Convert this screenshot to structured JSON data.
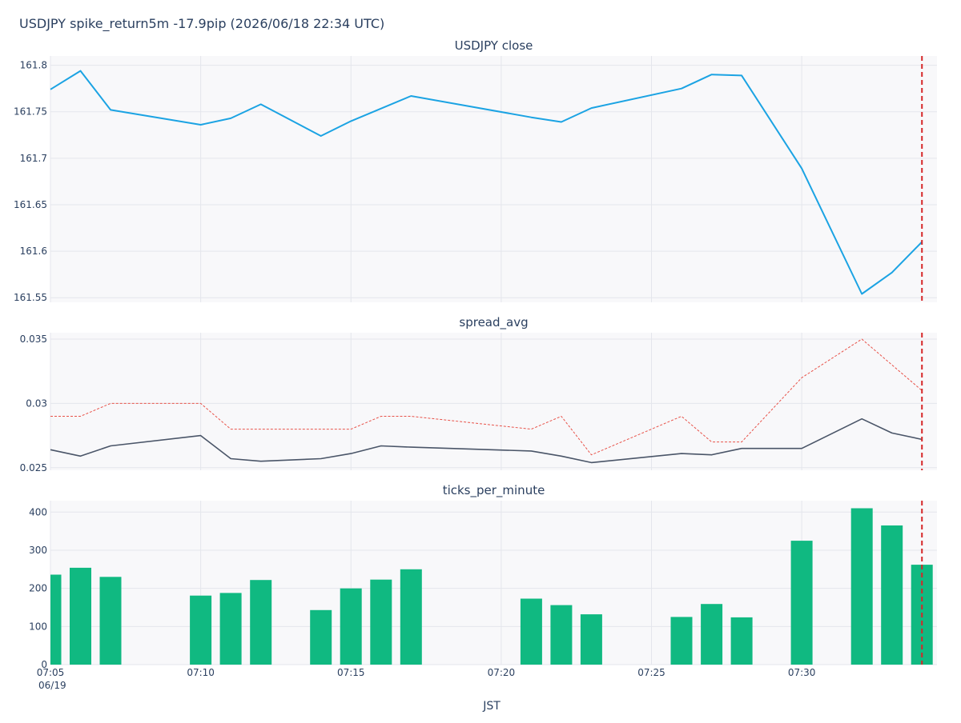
{
  "title": "USDJPY spike_return5m -17.9pip (2026/06/18 22:34 UTC)",
  "xaxis": {
    "label": "JST",
    "date_label": "06/19",
    "range": [
      "07:05",
      "07:34.5"
    ],
    "ticks": [
      "07:05",
      "07:10",
      "07:15",
      "07:20",
      "07:25",
      "07:30"
    ]
  },
  "event_marker": {
    "time": "07:34",
    "color": "#d62728",
    "style": "dashed"
  },
  "colors": {
    "close": "#1ba3e3",
    "spread": "#4a5568",
    "spread_max": "#e8534a",
    "ticks": "#10b981",
    "plot_bg": "#f8f8fa",
    "grid": "#e4e6ec",
    "text": "#2a3f5f"
  },
  "chart_data": [
    {
      "type": "line",
      "title": "USDJPY close",
      "ylim": [
        161.545,
        161.81
      ],
      "yticks": [
        {
          "value": 161.55,
          "label": "161.55"
        },
        {
          "value": 161.6,
          "label": "161.6"
        },
        {
          "value": 161.65,
          "label": "161.65"
        },
        {
          "value": 161.7,
          "label": "161.7"
        },
        {
          "value": 161.75,
          "label": "161.75"
        },
        {
          "value": 161.8,
          "label": "161.8"
        }
      ],
      "x": [
        "07:05",
        "07:06",
        "07:07",
        "07:10",
        "07:11",
        "07:12",
        "07:14",
        "07:15",
        "07:17",
        "07:21",
        "07:22",
        "07:23",
        "07:26",
        "07:27",
        "07:28",
        "07:30",
        "07:32",
        "07:33",
        "07:34"
      ],
      "series": [
        {
          "values": [
            161.774,
            161.794,
            161.752,
            161.736,
            161.743,
            161.758,
            161.724,
            161.74,
            161.767,
            161.744,
            161.739,
            161.754,
            161.775,
            161.79,
            161.789,
            161.689,
            161.554,
            161.577,
            161.61
          ]
        }
      ]
    },
    {
      "type": "line",
      "title": "spread_avg",
      "ylim": [
        0.0248,
        0.0355
      ],
      "yticks": [
        {
          "value": 0.025,
          "label": "0.025"
        },
        {
          "value": 0.03,
          "label": "0.03"
        },
        {
          "value": 0.035,
          "label": "0.035"
        }
      ],
      "x": [
        "07:05",
        "07:06",
        "07:07",
        "07:10",
        "07:11",
        "07:12",
        "07:14",
        "07:15",
        "07:16",
        "07:17",
        "07:21",
        "07:22",
        "07:23",
        "07:26",
        "07:27",
        "07:28",
        "07:30",
        "07:32",
        "07:33",
        "07:34"
      ],
      "series": [
        {
          "values": [
            0.0264,
            0.0259,
            0.0267,
            0.0275,
            0.0257,
            0.0255,
            0.0257,
            0.0261,
            0.0267,
            0.0266,
            0.0263,
            0.0259,
            0.0254,
            0.0261,
            0.026,
            0.0265,
            0.0265,
            0.0288,
            0.0277,
            0.0272
          ]
        },
        {
          "values": [
            0.029,
            0.029,
            0.03,
            0.03,
            0.028,
            0.028,
            0.028,
            0.028,
            0.029,
            0.029,
            0.028,
            0.029,
            0.026,
            0.029,
            0.027,
            0.027,
            0.032,
            0.035,
            0.033,
            0.031
          ]
        }
      ]
    },
    {
      "type": "bar",
      "title": "ticks_per_minute",
      "ylim": [
        0,
        430
      ],
      "yticks": [
        {
          "value": 0,
          "label": "0"
        },
        {
          "value": 100,
          "label": "100"
        },
        {
          "value": 200,
          "label": "200"
        },
        {
          "value": 300,
          "label": "300"
        },
        {
          "value": 400,
          "label": "400"
        }
      ],
      "x": [
        "07:05",
        "07:06",
        "07:07",
        "07:10",
        "07:11",
        "07:12",
        "07:14",
        "07:15",
        "07:16",
        "07:17",
        "07:21",
        "07:22",
        "07:23",
        "07:26",
        "07:27",
        "07:28",
        "07:30",
        "07:32",
        "07:33",
        "07:34"
      ],
      "values": [
        236,
        254,
        230,
        181,
        188,
        222,
        143,
        200,
        223,
        250,
        173,
        156,
        132,
        125,
        159,
        124,
        325,
        410,
        365,
        262
      ]
    }
  ]
}
